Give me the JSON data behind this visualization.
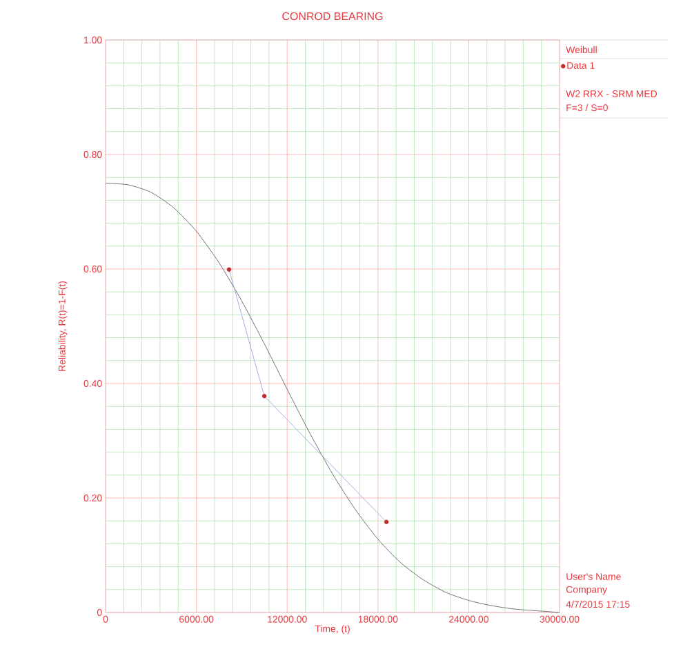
{
  "chart_data": {
    "type": "line",
    "title": "CONROD BEARING",
    "xlabel": "Time, (t)",
    "ylabel": "Reliability, R(t)=1-F(t)",
    "legend_title": "Weibull",
    "xlim": [
      0,
      30000
    ],
    "ylim": [
      0,
      1
    ],
    "xticks": [
      0,
      {
        "value": 1200,
        "label": null
      },
      {
        "value": 2400,
        "label": null
      },
      {
        "value": 3600,
        "label": null
      },
      {
        "value": 4800,
        "label": null
      },
      {
        "value": 6000,
        "label": "6000.00"
      },
      {
        "value": 7200,
        "label": null
      },
      {
        "value": 8400,
        "label": null
      },
      {
        "value": 9600,
        "label": null
      },
      {
        "value": 10800,
        "label": null
      },
      {
        "value": 12000,
        "label": "12000.00"
      },
      {
        "value": 13200,
        "label": null
      },
      {
        "value": 14400,
        "label": null
      },
      {
        "value": 15600,
        "label": null
      },
      {
        "value": 16800,
        "label": null
      },
      {
        "value": 18000,
        "label": "18000.00"
      },
      {
        "value": 19200,
        "label": null
      },
      {
        "value": 20400,
        "label": null
      },
      {
        "value": 21600,
        "label": null
      },
      {
        "value": 22800,
        "label": null
      },
      {
        "value": 24000,
        "label": "24000.00"
      },
      {
        "value": 25200,
        "label": null
      },
      {
        "value": 26400,
        "label": null
      },
      {
        "value": 27600,
        "label": null
      },
      {
        "value": 28800,
        "label": null
      },
      {
        "value": 30000,
        "label": "30000.00"
      }
    ],
    "yticks": [
      0,
      {
        "value": 0.04,
        "label": null
      },
      {
        "value": 0.08,
        "label": null
      },
      {
        "value": 0.12,
        "label": null
      },
      {
        "value": 0.16,
        "label": null
      },
      {
        "value": 0.2,
        "label": "0.20"
      },
      {
        "value": 0.24,
        "label": null
      },
      {
        "value": 0.28,
        "label": null
      },
      {
        "value": 0.32,
        "label": null
      },
      {
        "value": 0.36,
        "label": null
      },
      {
        "value": 0.4,
        "label": "0.40"
      },
      {
        "value": 0.44,
        "label": null
      },
      {
        "value": 0.48,
        "label": null
      },
      {
        "value": 0.52,
        "label": null
      },
      {
        "value": 0.56,
        "label": null
      },
      {
        "value": 0.6,
        "label": "0.60"
      },
      {
        "value": 0.64,
        "label": null
      },
      {
        "value": 0.68,
        "label": null
      },
      {
        "value": 0.72,
        "label": null
      },
      {
        "value": 0.76,
        "label": null
      },
      {
        "value": 0.8,
        "label": "0.80"
      },
      {
        "value": 0.84,
        "label": null
      },
      {
        "value": 0.88,
        "label": null
      },
      {
        "value": 0.92,
        "label": null
      },
      {
        "value": 0.96,
        "label": null
      },
      {
        "value": 1,
        "label": "1.00"
      }
    ],
    "grid": true,
    "legend": "top right",
    "series": [
      {
        "color": "#606060",
        "marker": "none",
        "x": [
          0,
          1500,
          3000,
          4500,
          6000,
          7500,
          9000,
          10500,
          12000,
          13500,
          15000,
          16500,
          18000,
          19500,
          21000,
          22500,
          24000,
          25500,
          27000,
          28500,
          30000
        ],
        "values": [
          0.75,
          0.747,
          0.734,
          0.707,
          0.666,
          0.611,
          0.544,
          0.469,
          0.39,
          0.313,
          0.242,
          0.18,
          0.128,
          0.087,
          0.057,
          0.035,
          0.021,
          0.012,
          0.006,
          0.003,
          0
        ]
      },
      {
        "color": "#9aa6e0",
        "marker": "none",
        "x": [
          8160,
          10490,
          18560
        ],
        "values": [
          0.599,
          0.378,
          0.158
        ]
      },
      {
        "type": "scatter",
        "name": "Data 1",
        "color": "#c62828",
        "marker": "circle",
        "x": [
          8160,
          10490,
          18560
        ],
        "values": [
          0.599,
          0.378,
          0.158
        ]
      }
    ],
    "annotations": [
      "W2 RRX - SRM MED",
      "F=3 / S=0",
      "User's Name",
      "Company",
      "4/7/2015 17:15"
    ]
  }
}
